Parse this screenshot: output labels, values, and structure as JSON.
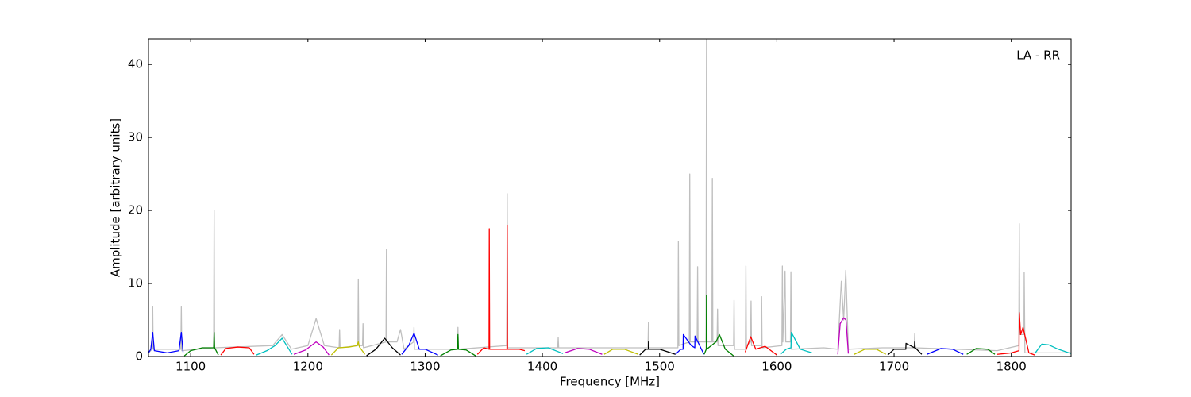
{
  "chart_data": {
    "type": "line",
    "annotation": "LA - RR",
    "xlabel": "Frequency [MHz]",
    "ylabel": "Amplitude [arbitrary units]",
    "xlim": [
      1064,
      1851
    ],
    "ylim": [
      0,
      43.5
    ],
    "xticks": [
      1100,
      1200,
      1300,
      1400,
      1500,
      1600,
      1700,
      1800
    ],
    "yticks": [
      0,
      10,
      20,
      30,
      40
    ],
    "grid": false,
    "series": [
      {
        "color": "#bfbfbf",
        "x": [
          1064,
          1067.2,
          1067.6,
          1068,
          1091.6,
          1092,
          1092.4,
          1119.6,
          1120,
          1120.4,
          1170,
          1178,
          1186,
          1200,
          1207,
          1214,
          1226.6,
          1227,
          1227.4,
          1242.6,
          1243,
          1243.4,
          1246.6,
          1247,
          1247.4,
          1266.6,
          1267,
          1267.4,
          1276,
          1279,
          1282,
          1290.1,
          1290.5,
          1290.9,
          1327.6,
          1328,
          1328.4,
          1369.6,
          1370,
          1370.4,
          1413.1,
          1413.5,
          1413.9,
          1490.1,
          1490.5,
          1490.9,
          1515.6,
          1516,
          1516.4,
          1525.3,
          1525.7,
          1526.1,
          1532,
          1532.4,
          1532.8,
          1539.6,
          1540,
          1540.4,
          1544.6,
          1545,
          1545.4,
          1549,
          1549.4,
          1549.8,
          1563.1,
          1563.5,
          1563.9,
          1573.2,
          1573.6,
          1574,
          1577.6,
          1578,
          1578.4,
          1586.6,
          1587,
          1587.4,
          1604.3,
          1604.7,
          1605.1,
          1607,
          1607.6,
          1611.6,
          1612,
          1612.4,
          1640,
          1652,
          1655,
          1657,
          1658.8,
          1661,
          1690,
          1717.2,
          1717.6,
          1718,
          1788,
          1806.4,
          1806.8,
          1807.2,
          1810.8,
          1811,
          1811.6,
          1851
        ],
        "values": [
          0.5,
          1,
          6.8,
          1,
          1,
          6.8,
          0.8,
          1.2,
          20,
          1.2,
          1.5,
          3,
          1,
          1.5,
          5.2,
          1.5,
          1.2,
          3.7,
          1.2,
          1.5,
          10.6,
          1.5,
          1.5,
          4.5,
          1.2,
          2,
          14.7,
          2,
          2,
          3.7,
          1,
          2,
          4,
          1,
          1,
          4,
          1,
          1.5,
          22.3,
          1.2,
          1.2,
          2.6,
          1.2,
          1.2,
          4.7,
          1.2,
          1.2,
          15.8,
          1.5,
          2,
          25,
          2,
          2,
          12.3,
          2,
          2,
          43.5,
          2,
          2,
          24.4,
          2,
          2,
          6.5,
          1.5,
          1.5,
          7.7,
          1,
          1,
          12.4,
          1.5,
          2,
          7.6,
          1.5,
          1.5,
          8.2,
          1.2,
          1.5,
          12.4,
          2,
          11.7,
          2,
          2,
          11.6,
          1,
          1.2,
          1,
          10.3,
          5,
          11.8,
          1,
          1.2,
          1.2,
          3.1,
          1.2,
          0.8,
          1.5,
          18.2,
          3,
          3,
          11.5,
          0.5,
          0.5
        ]
      },
      {
        "color": "#0000ff",
        "x": [
          1064,
          1066,
          1067.6,
          1069,
          1080,
          1090,
          1092,
          1093.5
        ],
        "values": [
          0.5,
          1,
          3.3,
          0.8,
          0.5,
          0.8,
          3.3,
          0.6
        ]
      },
      {
        "color": "#008000",
        "x": [
          1094.6,
          1100,
          1110,
          1119.6,
          1120,
          1120.4,
          1123.6
        ],
        "values": [
          0.1,
          0.8,
          1.2,
          1.2,
          3.3,
          1.2,
          0.2
        ]
      },
      {
        "color": "#ff0000",
        "x": [
          1125.7,
          1130,
          1140,
          1150,
          1154
        ],
        "values": [
          0.2,
          1.1,
          1.3,
          1.2,
          0.3
        ]
      },
      {
        "color": "#00bfbf",
        "x": [
          1156,
          1165,
          1172,
          1178,
          1183,
          1186.5
        ],
        "values": [
          0.2,
          0.8,
          1.5,
          2.5,
          1.2,
          0.3
        ]
      },
      {
        "color": "#bf00bf",
        "x": [
          1188,
          1198,
          1207,
          1213,
          1218
        ],
        "values": [
          0.3,
          0.9,
          2,
          1.3,
          0.2
        ]
      },
      {
        "color": "#bfbf00",
        "x": [
          1220,
          1226,
          1235,
          1242,
          1243,
          1244,
          1248.6
        ],
        "values": [
          0.2,
          1.2,
          1.3,
          1.5,
          2,
          1.3,
          0.3
        ]
      },
      {
        "color": "#000000",
        "x": [
          1250,
          1258,
          1265.5,
          1272,
          1279
        ],
        "values": [
          0.1,
          1,
          2.5,
          1.2,
          0.2
        ]
      },
      {
        "color": "#0000ff",
        "x": [
          1280,
          1286,
          1290.5,
          1295,
          1300,
          1311
        ],
        "values": [
          0.3,
          1.5,
          3.2,
          1,
          1,
          0.2
        ]
      },
      {
        "color": "#008000",
        "x": [
          1313,
          1322,
          1327.6,
          1328,
          1328.4,
          1335,
          1343
        ],
        "values": [
          0.1,
          0.9,
          1,
          3,
          1,
          0.9,
          0.1
        ]
      },
      {
        "color": "#ff0000",
        "x": [
          1344.6,
          1350,
          1354.5,
          1354.7,
          1355,
          1365,
          1369.8,
          1370,
          1370.2,
          1380,
          1385
        ],
        "values": [
          0.3,
          1.2,
          1,
          17.5,
          1,
          1,
          1,
          18,
          1,
          1,
          0.8
        ]
      },
      {
        "color": "#00bfbf",
        "x": [
          1386.5,
          1395,
          1405,
          1417.6
        ],
        "values": [
          0.3,
          1.1,
          1.2,
          0.4
        ]
      },
      {
        "color": "#bf00bf",
        "x": [
          1419,
          1430,
          1440,
          1451
        ],
        "values": [
          0.5,
          1.1,
          1,
          0.3
        ]
      },
      {
        "color": "#bfbf00",
        "x": [
          1452.7,
          1460,
          1470,
          1481.8
        ],
        "values": [
          0.3,
          1,
          1,
          0.3
        ]
      },
      {
        "color": "#000000",
        "x": [
          1483,
          1488,
          1490.4,
          1490.5,
          1490.6,
          1500,
          1513.5
        ],
        "values": [
          0.2,
          1,
          1,
          2,
          1,
          1,
          0.3
        ]
      },
      {
        "color": "#0000ff",
        "x": [
          1513.5,
          1518,
          1520,
          1520.2,
          1527,
          1530,
          1530.2,
          1537.8
        ],
        "values": [
          0.3,
          1,
          1,
          3,
          1.5,
          1.2,
          2.8,
          0.3
        ]
      },
      {
        "color": "#008000",
        "x": [
          1538,
          1539.8,
          1540,
          1540.2,
          1548,
          1551,
          1556,
          1563
        ],
        "values": [
          0.3,
          1,
          8.4,
          1,
          2,
          3,
          1,
          0.1
        ]
      },
      {
        "color": "#ff0000",
        "x": [
          1573,
          1577.7,
          1582,
          1590,
          1600
        ],
        "values": [
          0.6,
          2.7,
          1,
          1.4,
          0.2
        ]
      },
      {
        "color": "#00bfbf",
        "x": [
          1603,
          1608,
          1612,
          1612.4,
          1620,
          1630
        ],
        "values": [
          0.3,
          1,
          1.2,
          3.3,
          1,
          0.5
        ]
      },
      {
        "color": "#bf00bf",
        "x": [
          1652,
          1654,
          1657,
          1659,
          1661
        ],
        "values": [
          0.3,
          4.5,
          5.3,
          5,
          0.4
        ]
      },
      {
        "color": "#bfbf00",
        "x": [
          1666,
          1675,
          1685,
          1693
        ],
        "values": [
          0.3,
          1,
          1,
          0.3
        ]
      },
      {
        "color": "#000000",
        "x": [
          1694.6,
          1700,
          1710,
          1710.2,
          1717.4,
          1717.6,
          1718,
          1723.6
        ],
        "values": [
          0.2,
          1,
          1,
          1.8,
          1.2,
          2,
          1.2,
          0.3
        ]
      },
      {
        "color": "#0000ff",
        "x": [
          1728,
          1740,
          1750,
          1759
        ],
        "values": [
          0.3,
          1.1,
          1,
          0.3
        ]
      },
      {
        "color": "#008000",
        "x": [
          1762,
          1770,
          1780,
          1786
        ],
        "values": [
          0.3,
          1.1,
          1,
          0.3
        ]
      },
      {
        "color": "#ff0000",
        "x": [
          1788,
          1800,
          1806.6,
          1806.8,
          1808,
          1810,
          1811,
          1815,
          1820
        ],
        "values": [
          0.3,
          0.5,
          0.8,
          6,
          3,
          4,
          3.3,
          0.5,
          0.2
        ]
      },
      {
        "color": "#00bfbf",
        "x": [
          1820,
          1826,
          1832,
          1840,
          1851
        ],
        "values": [
          0.4,
          1.7,
          1.6,
          1,
          0.4
        ]
      }
    ]
  }
}
